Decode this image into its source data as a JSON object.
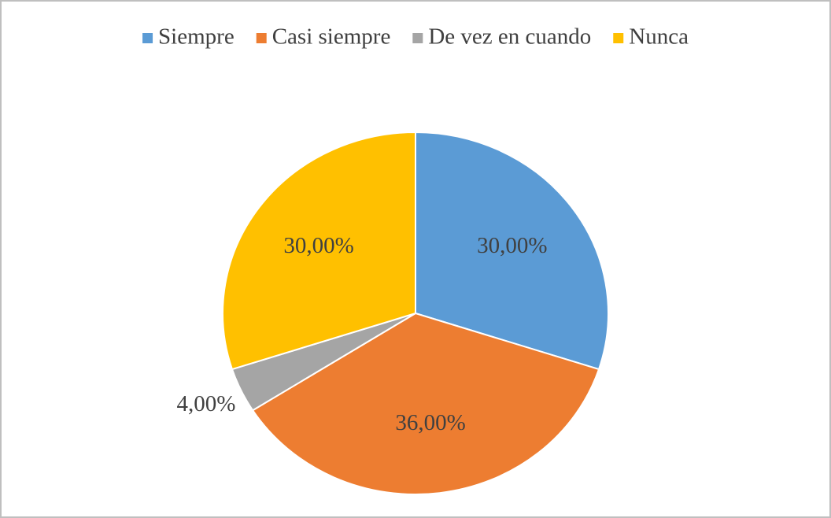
{
  "chart_data": {
    "type": "pie",
    "categories": [
      "Siempre",
      "Casi siempre",
      "De vez en cuando",
      "Nunca"
    ],
    "values": [
      30,
      36,
      4,
      30
    ],
    "value_labels": [
      "30,00%",
      "36,00%",
      "4,00%",
      "30,00%"
    ],
    "colors": [
      "#5b9bd5",
      "#ed7d31",
      "#a5a5a5",
      "#ffc000"
    ],
    "legend": "top"
  }
}
